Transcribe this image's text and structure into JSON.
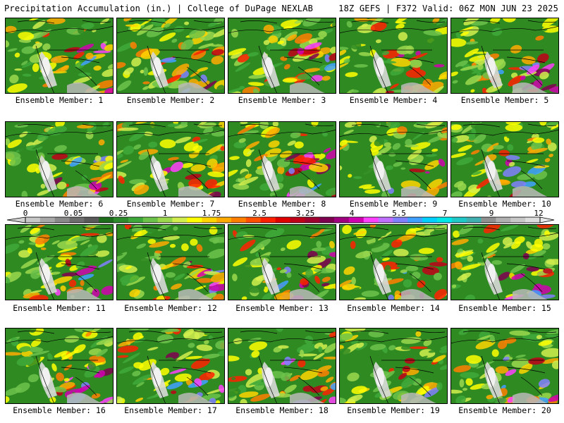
{
  "header": {
    "left": "Precipitation Accumulation (in.) | College of DuPage NEXLAB",
    "right": "18Z GEFS | F372 Valid: 06Z MON JUN 23 2025"
  },
  "colorbar": {
    "tick_labels": [
      "0",
      "0.05",
      "0.25",
      "1",
      "1.75",
      "2.5",
      "3.25",
      "4",
      "5.5",
      "7",
      "9",
      "12"
    ],
    "colors": [
      "#c8c8c8",
      "#a8a8a8",
      "#8a8a8a",
      "#6e6e6e",
      "#5a5a5a",
      "#1e6e1e",
      "#2e8b2e",
      "#3fa83a",
      "#6cc24a",
      "#9bd84e",
      "#d2ee4e",
      "#ffff00",
      "#ffd400",
      "#ffaa00",
      "#ff7f00",
      "#ff5000",
      "#ff2000",
      "#e00000",
      "#c00018",
      "#a00030",
      "#800050",
      "#a00080",
      "#d000b0",
      "#ff40ff",
      "#c070ff",
      "#8080ff",
      "#40a0ff",
      "#00d0ff",
      "#00e8e8",
      "#20c8c8",
      "#40b0b0",
      "#909090",
      "#b0b0b0",
      "#c8c8c8",
      "#dddddd"
    ]
  },
  "members": [
    {
      "caption": "Ensemble Member: 1"
    },
    {
      "caption": "Ensemble Member: 2"
    },
    {
      "caption": "Ensemble Member: 3"
    },
    {
      "caption": "Ensemble Member: 4"
    },
    {
      "caption": "Ensemble Member: 5"
    },
    {
      "caption": "Ensemble Member: 6"
    },
    {
      "caption": "Ensemble Member: 7"
    },
    {
      "caption": "Ensemble Member: 8"
    },
    {
      "caption": "Ensemble Member: 9"
    },
    {
      "caption": "Ensemble Member: 10"
    },
    {
      "caption": "Ensemble Member: 11"
    },
    {
      "caption": "Ensemble Member: 12"
    },
    {
      "caption": "Ensemble Member: 13"
    },
    {
      "caption": "Ensemble Member: 14"
    },
    {
      "caption": "Ensemble Member: 15"
    },
    {
      "caption": "Ensemble Member: 16"
    },
    {
      "caption": "Ensemble Member: 17"
    },
    {
      "caption": "Ensemble Member: 18"
    },
    {
      "caption": "Ensemble Member: 19"
    },
    {
      "caption": "Ensemble Member: 20"
    }
  ]
}
